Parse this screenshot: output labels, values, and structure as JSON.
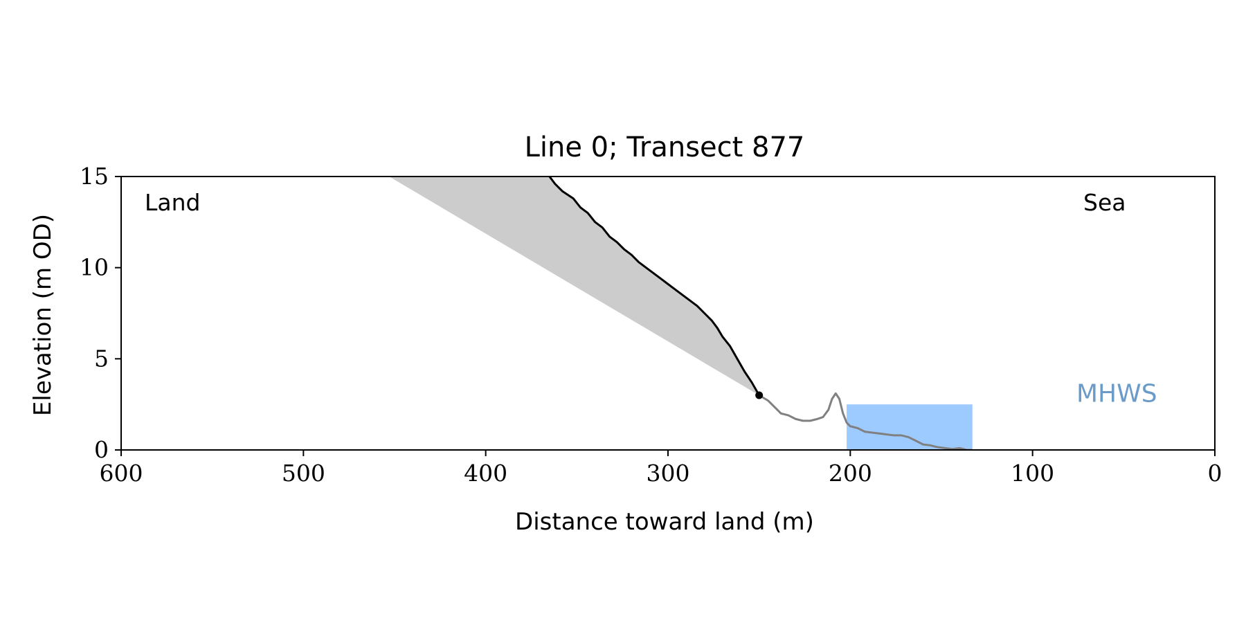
{
  "chart_data": {
    "type": "line",
    "title": "Line 0; Transect 877",
    "xlabel": "Distance toward land (m)",
    "ylabel": "Elevation (m OD)",
    "xlim": [
      600,
      0
    ],
    "ylim": [
      0,
      15
    ],
    "x_reversed": true,
    "xticks": [
      600,
      500,
      400,
      300,
      200,
      100,
      0
    ],
    "yticks": [
      0,
      5,
      10,
      15
    ],
    "grid": false,
    "annotations": {
      "land": "Land",
      "sea": "Sea",
      "mhws": "MHWS"
    },
    "colors": {
      "cliff_profile": "#000000",
      "foreshore_profile": "#808080",
      "wedge_fill": "#cccccc",
      "water_fill": "#9ecbff",
      "mhws_label": "#6a9bc9"
    },
    "cliff_profile": {
      "x": [
        365,
        362,
        358,
        352,
        348,
        344,
        340,
        336,
        332,
        328,
        324,
        320,
        316,
        312,
        308,
        304,
        300,
        296,
        292,
        288,
        284,
        280,
        276,
        273,
        270,
        266,
        262,
        258,
        254,
        250
      ],
      "y": [
        15.0,
        14.6,
        14.2,
        13.8,
        13.3,
        13.0,
        12.5,
        12.2,
        11.7,
        11.4,
        11.0,
        10.7,
        10.3,
        10.0,
        9.7,
        9.4,
        9.1,
        8.8,
        8.5,
        8.2,
        7.9,
        7.5,
        7.1,
        6.7,
        6.2,
        5.7,
        5.0,
        4.3,
        3.7,
        3.0
      ]
    },
    "cliff_toe": {
      "x": 250,
      "y": 3.0
    },
    "foreshore_profile": {
      "x": [
        250,
        245,
        241,
        238,
        234,
        230,
        226,
        222,
        218,
        215,
        212,
        210,
        208,
        206,
        204,
        202,
        200,
        196,
        192,
        188,
        184,
        180,
        176,
        172,
        168,
        164,
        160,
        156,
        152,
        148,
        144,
        140,
        136,
        133
      ],
      "y": [
        3.0,
        2.7,
        2.3,
        2.0,
        1.9,
        1.7,
        1.6,
        1.6,
        1.7,
        1.8,
        2.2,
        2.8,
        3.1,
        2.8,
        2.0,
        1.5,
        1.3,
        1.2,
        1.0,
        0.95,
        0.9,
        0.85,
        0.8,
        0.8,
        0.7,
        0.5,
        0.3,
        0.25,
        0.15,
        0.1,
        0.05,
        0.1,
        0.0,
        0.0
      ]
    },
    "wedge": {
      "x": [
        453,
        365,
        250
      ],
      "y": [
        15,
        15,
        3.0
      ]
    },
    "water": {
      "x_from": 202,
      "x_to": 133,
      "level": 2.5
    }
  }
}
